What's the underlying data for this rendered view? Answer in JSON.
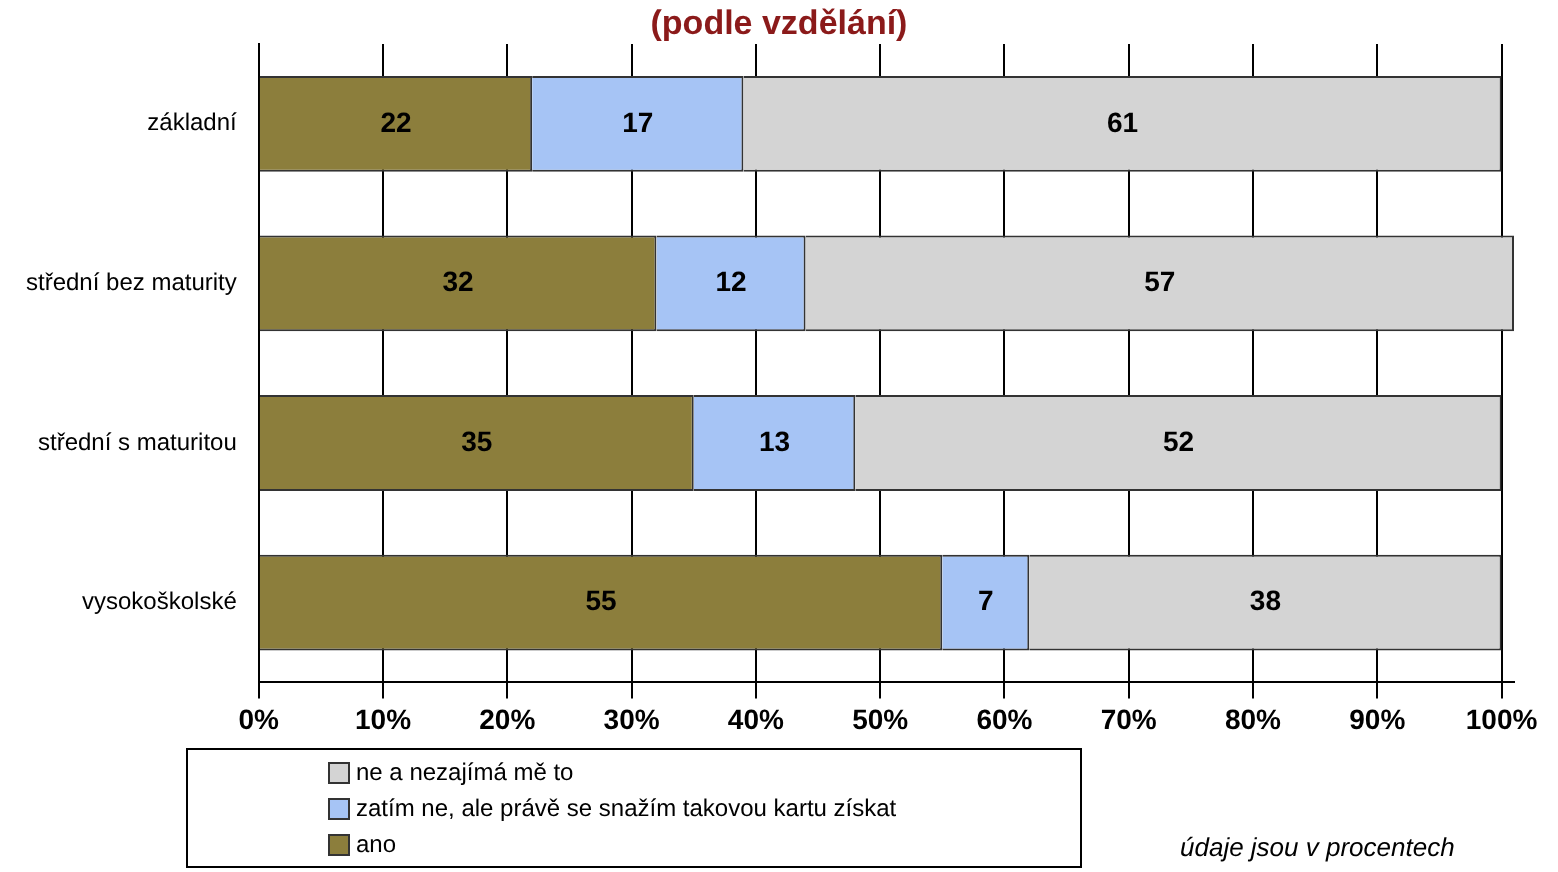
{
  "chart_data": {
    "type": "bar",
    "orientation": "horizontal",
    "stacked": true,
    "title": "(podle vzdělání)",
    "categories": [
      "základní",
      "střední bez maturity",
      "střední s maturitou",
      "vysokoškolské"
    ],
    "series": [
      {
        "name": "ano",
        "color": "#8c7e3c",
        "values": [
          22,
          32,
          35,
          55
        ]
      },
      {
        "name": "zatím ne, ale právě se snažím takovou kartu získat",
        "color": "#a6c4f5",
        "values": [
          17,
          12,
          13,
          7
        ]
      },
      {
        "name": "ne a nezajímá mě to",
        "color": "#d4d4d4",
        "values": [
          61,
          57,
          52,
          38
        ]
      }
    ],
    "xlim": [
      0,
      101
    ],
    "xticks": [
      {
        "value": 0,
        "label": "0%"
      },
      {
        "value": 10,
        "label": "10%"
      },
      {
        "value": 20,
        "label": "20%"
      },
      {
        "value": 30,
        "label": "30%"
      },
      {
        "value": 40,
        "label": "40%"
      },
      {
        "value": 50,
        "label": "50%"
      },
      {
        "value": 60,
        "label": "60%"
      },
      {
        "value": 70,
        "label": "70%"
      },
      {
        "value": 80,
        "label": "80%"
      },
      {
        "value": 90,
        "label": "90%"
      },
      {
        "value": 100,
        "label": "100%"
      }
    ],
    "grid": "x",
    "legend": "bottom",
    "data_labels": true,
    "annotations": [
      "údaje jsou v procentech"
    ]
  }
}
